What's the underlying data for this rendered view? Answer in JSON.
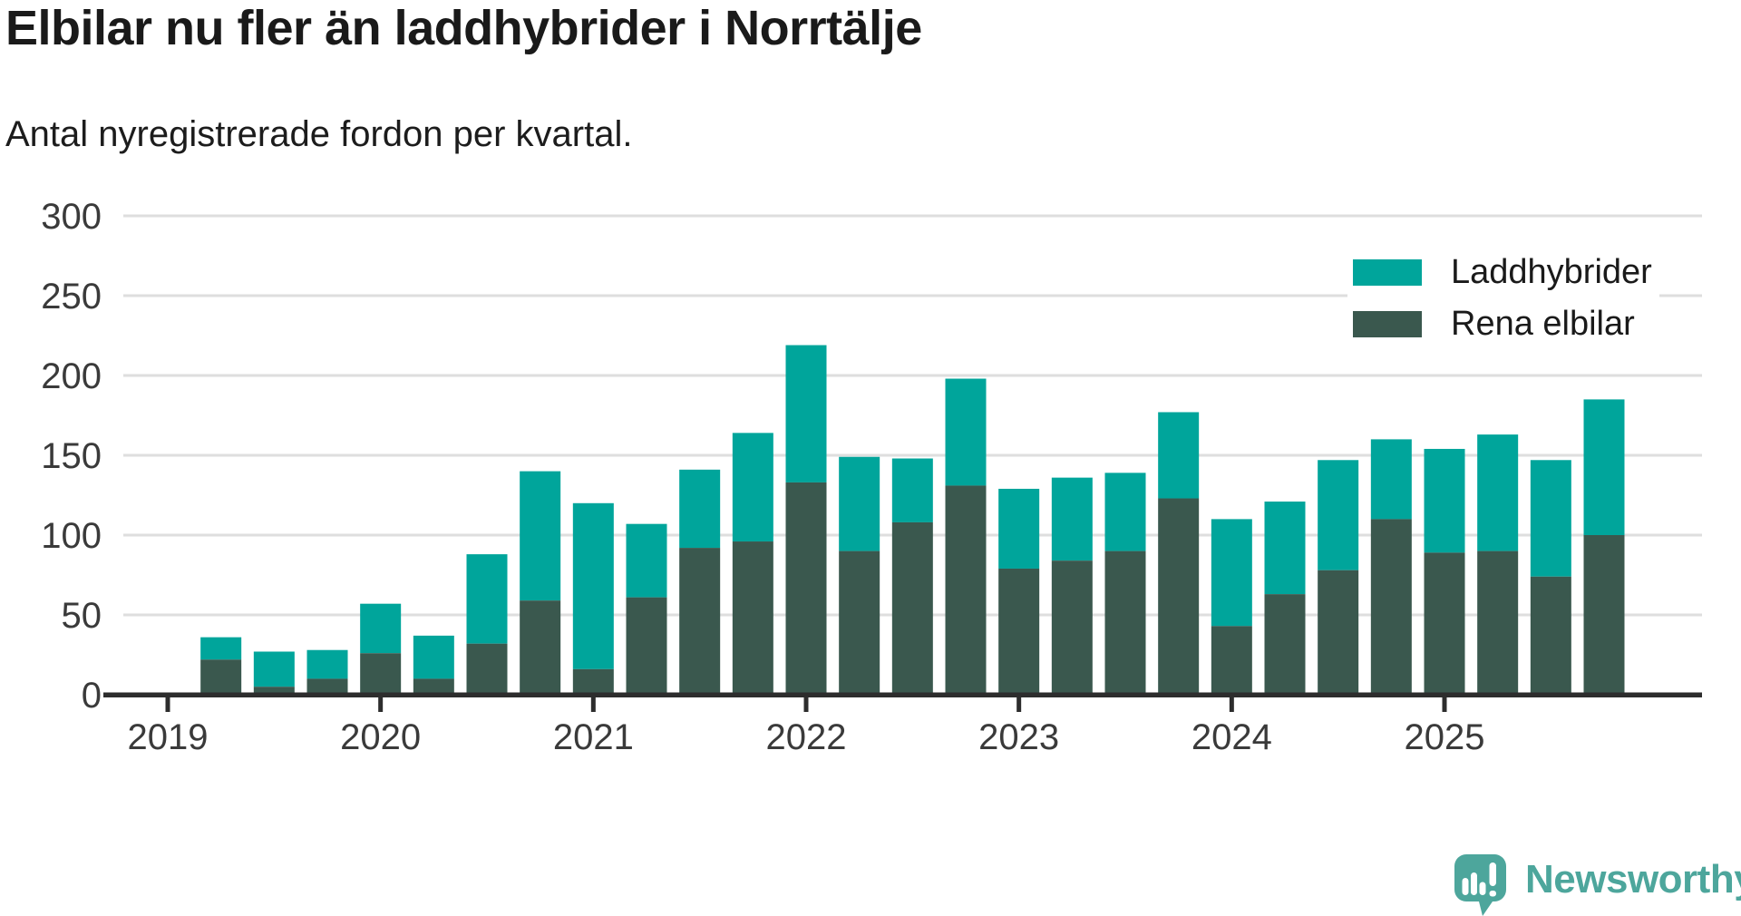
{
  "chart_data": {
    "type": "bar",
    "stacked": true,
    "title": "Elbilar nu fler än laddhybrider i Norrtälje",
    "subtitle": "Antal nyregistrerade fordon per kvartal.",
    "x": [
      "2019-Q2",
      "2019-Q3",
      "2019-Q4",
      "2020-Q1",
      "2020-Q2",
      "2020-Q3",
      "2020-Q4",
      "2021-Q1",
      "2021-Q2",
      "2021-Q3",
      "2021-Q4",
      "2022-Q1",
      "2022-Q2",
      "2022-Q3",
      "2022-Q4",
      "2023-Q1",
      "2023-Q2",
      "2023-Q3",
      "2023-Q4",
      "2024-Q1",
      "2024-Q2",
      "2024-Q3",
      "2024-Q4",
      "2025-Q1",
      "2025-Q2",
      "2025-Q3",
      "2025-Q4"
    ],
    "series": [
      {
        "name": "Laddhybrider",
        "color": "#00a59b",
        "stack_position": "top",
        "values": [
          14,
          22,
          18,
          31,
          27,
          56,
          81,
          104,
          46,
          49,
          68,
          86,
          59,
          40,
          67,
          50,
          52,
          49,
          54,
          67,
          58,
          69,
          50,
          65,
          73,
          73,
          85
        ]
      },
      {
        "name": "Rena elbilar",
        "color": "#3a584e",
        "stack_position": "bottom",
        "values": [
          22,
          5,
          10,
          26,
          10,
          32,
          59,
          16,
          61,
          92,
          96,
          133,
          90,
          108,
          131,
          79,
          84,
          90,
          123,
          43,
          63,
          78,
          110,
          89,
          90,
          74,
          100
        ]
      }
    ],
    "totals": [
      36,
      27,
      28,
      57,
      37,
      88,
      140,
      120,
      107,
      141,
      164,
      219,
      149,
      148,
      198,
      129,
      136,
      139,
      177,
      110,
      121,
      147,
      160,
      154,
      163,
      147,
      185
    ],
    "y_ticks": [
      0,
      50,
      100,
      150,
      200,
      250,
      300
    ],
    "ylim": [
      0,
      300
    ],
    "x_year_ticks": [
      "2019",
      "2020",
      "2021",
      "2022",
      "2023",
      "2024",
      "2025"
    ],
    "grid": true,
    "legend_position": "top-right",
    "axis_color": "#2d2d2d",
    "grid_color": "#dedede",
    "tick_label_color": "#3a3a3a"
  },
  "branding": {
    "logo_text": "Newsworthy",
    "logo_color": "#4da69c"
  }
}
